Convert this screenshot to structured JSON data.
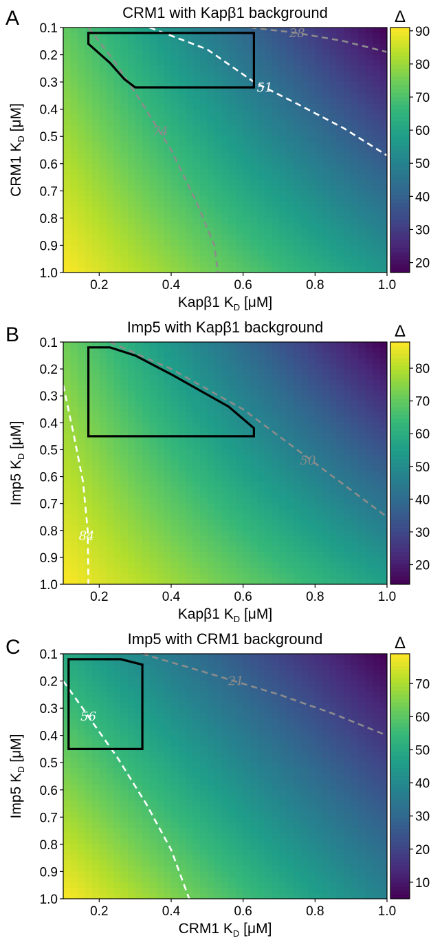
{
  "chart_data": [
    {
      "type": "heatmap",
      "panel_label": "A",
      "title": "CRM1 with Kapβ1 background",
      "xlabel": "Kapβ1 K",
      "ylabel": "CRM1 K",
      "label_subscript": "D",
      "label_unit": "[μM]",
      "xlim": [
        0.1,
        1.0
      ],
      "ylim": [
        0.1,
        1.0
      ],
      "y_inverted": true,
      "xticks": [
        0.2,
        0.4,
        0.6,
        0.8,
        1.0
      ],
      "xtick_labels": [
        "0.2",
        "0.4",
        "0.6",
        "0.8",
        "1.0"
      ],
      "yticks": [
        0.1,
        0.2,
        0.3,
        0.4,
        0.5,
        0.6,
        0.7,
        0.8,
        0.9,
        1.0
      ],
      "ytick_labels": [
        "0.1",
        "0.2",
        "0.3",
        "0.4",
        "0.5",
        "0.6",
        "0.7",
        "0.8",
        "0.9",
        "1.0"
      ],
      "colorbar": {
        "title": "Δ",
        "min": 17,
        "max": 91,
        "ticks": [
          20,
          30,
          40,
          50,
          60,
          70,
          80,
          90
        ],
        "tick_labels": [
          "20",
          "30",
          "40",
          "50",
          "60",
          "70",
          "80",
          "90"
        ],
        "colormap": "viridis"
      },
      "value_corners": {
        "x0y0": 73,
        "x1y0": 17,
        "x0y1": 91,
        "x1y1": 56
      },
      "contours": [
        {
          "label": "28",
          "color": "#8c8c8c",
          "points": [
            [
              0.62,
              0.1
            ],
            [
              0.75,
              0.12
            ],
            [
              0.88,
              0.15
            ],
            [
              1.0,
              0.19
            ]
          ],
          "label_at": [
            0.75,
            0.12
          ]
        },
        {
          "label": "51",
          "color": "#ffffff",
          "points": [
            [
              0.34,
              0.1
            ],
            [
              0.5,
              0.18
            ],
            [
              0.63,
              0.3
            ],
            [
              0.75,
              0.38
            ],
            [
              0.88,
              0.47
            ],
            [
              1.0,
              0.57
            ]
          ],
          "label_at": [
            0.66,
            0.32
          ]
        },
        {
          "label": "74",
          "color": "#8c8c8c",
          "points": [
            [
              0.17,
              0.1
            ],
            [
              0.24,
              0.22
            ],
            [
              0.32,
              0.38
            ],
            [
              0.4,
              0.55
            ],
            [
              0.47,
              0.74
            ],
            [
              0.52,
              0.9
            ],
            [
              0.53,
              1.0
            ]
          ],
          "label_at": [
            0.37,
            0.48
          ]
        }
      ],
      "region": [
        [
          0.17,
          0.12
        ],
        [
          0.63,
          0.12
        ],
        [
          0.63,
          0.32
        ],
        [
          0.3,
          0.32
        ],
        [
          0.27,
          0.29
        ],
        [
          0.23,
          0.23
        ],
        [
          0.17,
          0.16
        ]
      ]
    },
    {
      "type": "heatmap",
      "panel_label": "B",
      "title": "Imp5 with Kapβ1 background",
      "xlabel": "Kapβ1 K",
      "ylabel": "Imp5 K",
      "label_subscript": "D",
      "label_unit": "[μM]",
      "xlim": [
        0.1,
        1.0
      ],
      "ylim": [
        0.1,
        1.0
      ],
      "y_inverted": true,
      "xticks": [
        0.2,
        0.4,
        0.6,
        0.8,
        1.0
      ],
      "xtick_labels": [
        "0.2",
        "0.4",
        "0.6",
        "0.8",
        "1.0"
      ],
      "yticks": [
        0.1,
        0.2,
        0.3,
        0.4,
        0.5,
        0.6,
        0.7,
        0.8,
        0.9,
        1.0
      ],
      "ytick_labels": [
        "0.1",
        "0.2",
        "0.3",
        "0.4",
        "0.5",
        "0.6",
        "0.7",
        "0.8",
        "0.9",
        "1.0"
      ],
      "colorbar": {
        "title": "Δ",
        "min": 14,
        "max": 88,
        "ticks": [
          20,
          30,
          40,
          50,
          60,
          70,
          80
        ],
        "tick_labels": [
          "20",
          "30",
          "40",
          "50",
          "60",
          "70",
          "80"
        ],
        "colormap": "viridis"
      },
      "value_corners": {
        "x0y0": 72,
        "x1y0": 14,
        "x0y1": 88,
        "x1y1": 56
      },
      "contours": [
        {
          "label": "50",
          "color": "#8c8c8c",
          "points": [
            [
              0.23,
              0.1
            ],
            [
              0.4,
              0.2
            ],
            [
              0.6,
              0.35
            ],
            [
              0.8,
              0.55
            ],
            [
              1.0,
              0.75
            ]
          ],
          "label_at": [
            0.78,
            0.54
          ]
        },
        {
          "label": "84",
          "color": "#ffffff",
          "points": [
            [
              0.1,
              0.26
            ],
            [
              0.13,
              0.45
            ],
            [
              0.155,
              0.62
            ],
            [
              0.168,
              0.8
            ],
            [
              0.17,
              1.0
            ]
          ],
          "label_at": [
            0.165,
            0.82
          ]
        }
      ],
      "region": [
        [
          0.17,
          0.12
        ],
        [
          0.23,
          0.12
        ],
        [
          0.3,
          0.15
        ],
        [
          0.4,
          0.22
        ],
        [
          0.56,
          0.34
        ],
        [
          0.63,
          0.42
        ],
        [
          0.63,
          0.45
        ],
        [
          0.17,
          0.45
        ]
      ]
    },
    {
      "type": "heatmap",
      "panel_label": "C",
      "title": "Imp5 with CRM1 background",
      "xlabel": "CRM1 K",
      "ylabel": "Imp5 K",
      "label_subscript": "D",
      "label_unit": "[μM]",
      "xlim": [
        0.1,
        1.0
      ],
      "ylim": [
        0.1,
        1.0
      ],
      "y_inverted": true,
      "xticks": [
        0.2,
        0.4,
        0.6,
        0.8,
        1.0
      ],
      "xtick_labels": [
        "0.2",
        "0.4",
        "0.6",
        "0.8",
        "1.0"
      ],
      "yticks": [
        0.1,
        0.2,
        0.3,
        0.4,
        0.5,
        0.6,
        0.7,
        0.8,
        0.9,
        1.0
      ],
      "ytick_labels": [
        "0.1",
        "0.2",
        "0.3",
        "0.4",
        "0.5",
        "0.6",
        "0.7",
        "0.8",
        "0.9",
        "1.0"
      ],
      "colorbar": {
        "title": "Δ",
        "min": 5,
        "max": 79,
        "ticks": [
          10,
          20,
          30,
          40,
          50,
          60,
          70
        ],
        "tick_labels": [
          "10",
          "20",
          "30",
          "40",
          "50",
          "60",
          "70"
        ],
        "colormap": "viridis"
      },
      "value_corners": {
        "x0y0": 50,
        "x1y0": 5,
        "x0y1": 79,
        "x1y1": 38
      },
      "contours": [
        {
          "label": "21",
          "color": "#8c8c8c",
          "points": [
            [
              0.32,
              0.1
            ],
            [
              0.5,
              0.17
            ],
            [
              0.7,
              0.25
            ],
            [
              0.85,
              0.32
            ],
            [
              1.0,
              0.4
            ]
          ],
          "label_at": [
            0.58,
            0.2
          ]
        },
        {
          "label": "56",
          "color": "#ffffff",
          "points": [
            [
              0.1,
              0.2
            ],
            [
              0.17,
              0.33
            ],
            [
              0.25,
              0.48
            ],
            [
              0.33,
              0.65
            ],
            [
              0.4,
              0.82
            ],
            [
              0.45,
              1.0
            ]
          ],
          "label_at": [
            0.17,
            0.33
          ]
        }
      ],
      "region": [
        [
          0.115,
          0.12
        ],
        [
          0.26,
          0.12
        ],
        [
          0.32,
          0.14
        ],
        [
          0.32,
          0.45
        ],
        [
          0.115,
          0.45
        ]
      ]
    }
  ]
}
